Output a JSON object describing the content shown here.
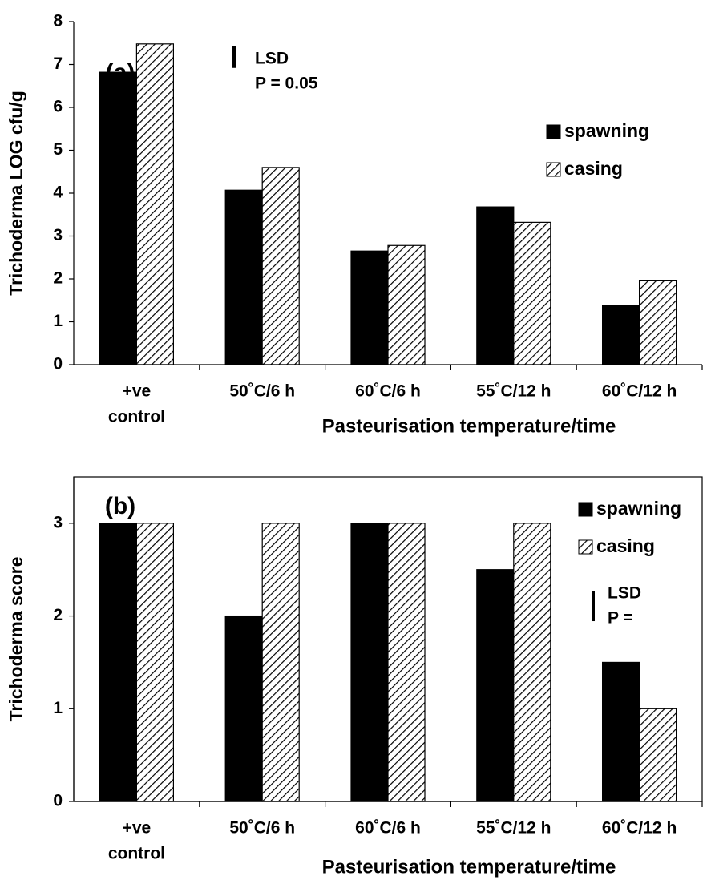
{
  "chart_data": [
    {
      "type": "bar",
      "panel_label": "(a)",
      "ylabel": "Trichoderma LOG cfu/g",
      "xlabel": "Pasteurisation temperature/time",
      "categories": [
        [
          "+ve",
          "control"
        ],
        [
          "50˚C/6 h"
        ],
        [
          "60˚C/6 h"
        ],
        [
          "55˚C/12 h"
        ],
        [
          "60˚C/12 h"
        ]
      ],
      "series": [
        {
          "name": "spawning",
          "color": "#000000",
          "values": [
            6.82,
            4.07,
            2.65,
            3.68,
            1.38
          ]
        },
        {
          "name": "casing",
          "color": "hatch",
          "values": [
            7.48,
            4.6,
            2.78,
            3.32,
            1.97
          ]
        }
      ],
      "ylim": [
        0,
        8
      ],
      "yticks": [
        0,
        1,
        2,
        3,
        4,
        5,
        6,
        7,
        8
      ],
      "frame": false,
      "lsd": {
        "label": "LSD",
        "p_label": "P = 0.05",
        "value": 0.5
      }
    },
    {
      "type": "bar",
      "panel_label": "(b)",
      "ylabel": "Trichoderma score",
      "xlabel": "Pasteurisation temperature/time",
      "categories": [
        [
          "+ve",
          "control"
        ],
        [
          "50˚C/6 h"
        ],
        [
          "60˚C/6 h"
        ],
        [
          "55˚C/12 h"
        ],
        [
          "60˚C/12 h"
        ]
      ],
      "series": [
        {
          "name": "spawning",
          "color": "#000000",
          "values": [
            3,
            2,
            3,
            2.5,
            1.5
          ]
        },
        {
          "name": "casing",
          "color": "hatch",
          "values": [
            3,
            3,
            3,
            3,
            1
          ]
        }
      ],
      "ylim": [
        0,
        3.5
      ],
      "yticks": [
        0,
        1,
        2,
        3
      ],
      "frame": true,
      "lsd": {
        "label": "LSD",
        "p_label": "P =",
        "value": 0.32
      }
    }
  ]
}
